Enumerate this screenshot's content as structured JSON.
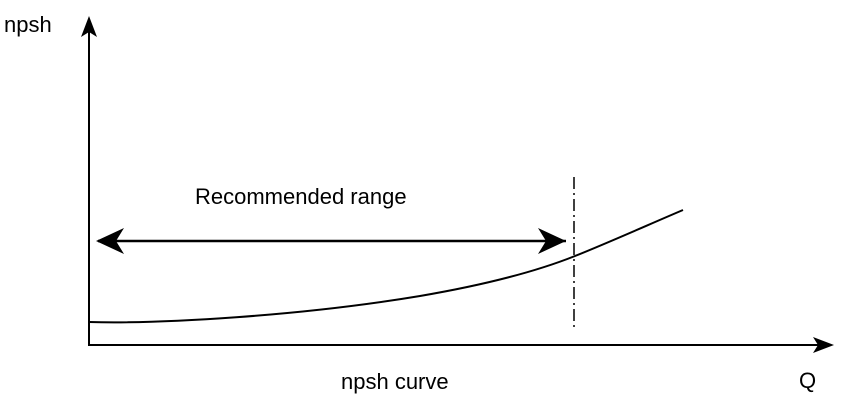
{
  "diagram": {
    "y_axis_label": "npsh",
    "x_axis_label": "Q",
    "range_label": "Recommended range",
    "caption": "npsh curve",
    "line_color": "#000000",
    "background_color": "#ffffff"
  }
}
